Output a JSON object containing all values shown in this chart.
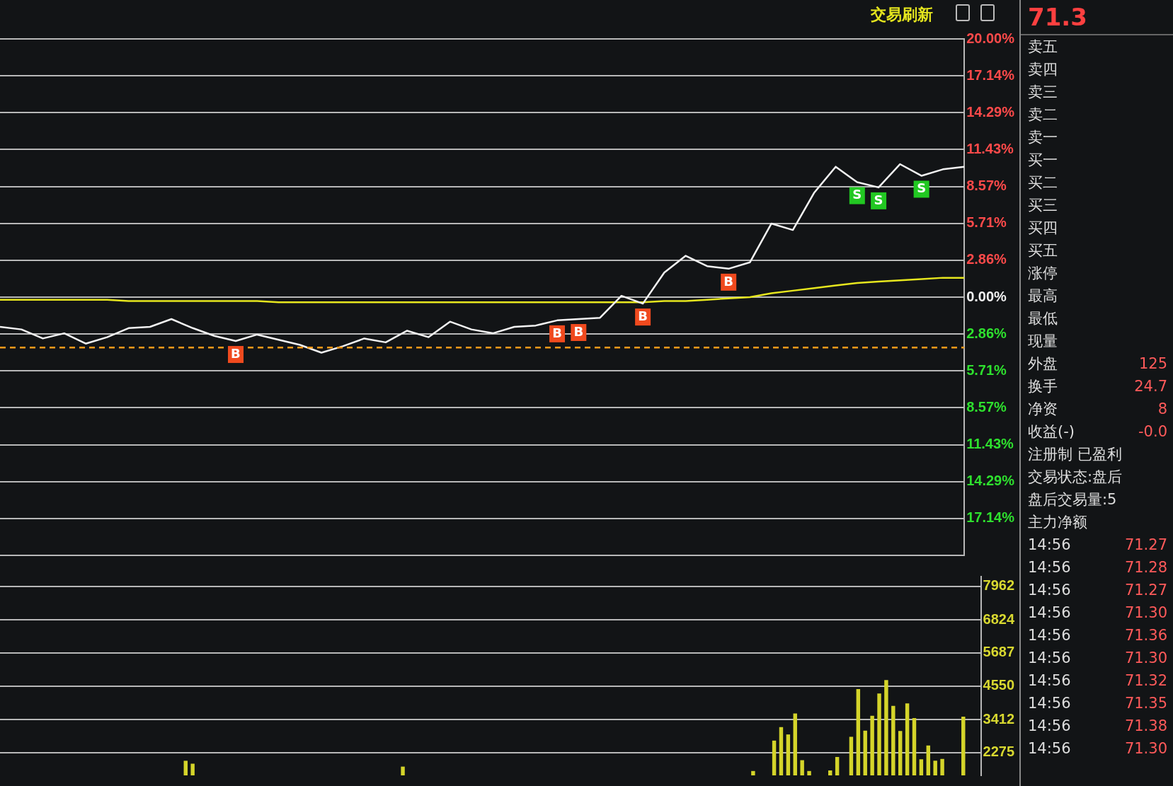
{
  "chart_data": [
    {
      "type": "line",
      "categories": [
        null,
        null,
        null,
        null,
        null,
        null,
        null,
        null,
        null,
        null,
        null,
        null,
        null,
        null,
        null,
        null,
        null,
        null,
        null,
        null,
        null,
        null,
        null,
        null,
        null,
        null,
        null,
        null,
        null,
        null,
        null,
        null,
        null,
        null,
        null,
        null,
        null,
        null,
        null,
        null,
        null,
        null,
        null,
        null,
        null,
        null
      ],
      "series": [
        {
          "color": "#f2f2f2",
          "values": [
            -2.3,
            -2.5,
            -3.2,
            -2.8,
            -3.6,
            -3.1,
            -2.4,
            -2.3,
            -1.7,
            -2.4,
            -3.0,
            -3.4,
            -2.9,
            -3.3,
            -3.7,
            -4.3,
            -3.8,
            -3.2,
            -3.5,
            -2.6,
            -3.1,
            -1.9,
            -2.5,
            -2.8,
            -2.3,
            -2.2,
            -1.8,
            -1.7,
            -1.6,
            0.1,
            -0.5,
            1.9,
            3.2,
            2.4,
            2.2,
            2.7,
            5.7,
            5.2,
            8.1,
            10.1,
            8.9,
            8.5,
            10.3,
            9.4,
            9.9,
            10.1
          ]
        },
        {
          "color": "#e6e61e",
          "values": [
            -0.2,
            -0.2,
            -0.2,
            -0.2,
            -0.2,
            -0.2,
            -0.3,
            -0.3,
            -0.3,
            -0.3,
            -0.3,
            -0.3,
            -0.3,
            -0.4,
            -0.4,
            -0.4,
            -0.4,
            -0.4,
            -0.4,
            -0.4,
            -0.4,
            -0.4,
            -0.4,
            -0.4,
            -0.4,
            -0.4,
            -0.4,
            -0.4,
            -0.4,
            -0.4,
            -0.4,
            -0.3,
            -0.3,
            -0.2,
            -0.1,
            0.0,
            0.3,
            0.5,
            0.7,
            0.9,
            1.1,
            1.2,
            1.3,
            1.4,
            1.5,
            1.5
          ]
        }
      ],
      "ylim": [
        -20,
        20
      ],
      "yticks": [
        {
          "value": 20,
          "label": "20.00%"
        },
        {
          "value": 17.14,
          "label": "17.14%"
        },
        {
          "value": 14.29,
          "label": "14.29%"
        },
        {
          "value": 11.43,
          "label": "11.43%"
        },
        {
          "value": 8.57,
          "label": "8.57%"
        },
        {
          "value": 5.71,
          "label": "5.71%"
        },
        {
          "value": 2.86,
          "label": "2.86%"
        },
        {
          "value": 0,
          "label": "0.00%"
        },
        {
          "value": -2.86,
          "label": "2.86%"
        },
        {
          "value": -5.71,
          "label": "5.71%"
        },
        {
          "value": -8.57,
          "label": "8.57%"
        },
        {
          "value": -11.43,
          "label": "11.43%"
        },
        {
          "value": -14.29,
          "label": "14.29%"
        },
        {
          "value": -17.14,
          "label": "17.14%"
        },
        {
          "value": -20,
          "label": null
        }
      ],
      "grid": "y",
      "tick_labels": "y",
      "marker": "none",
      "line_style": "solid",
      "ref_lines": [
        {
          "axis": "y",
          "value": -3.9,
          "color": "#ff9a1a",
          "line_style": "dashed"
        }
      ],
      "annotations": [
        "交易刷新",
        "71.3",
        {
          "text": "B",
          "y": -3.4
        },
        {
          "text": "B",
          "y": -1.8
        },
        {
          "text": "B",
          "y": -1.7
        },
        {
          "text": "B",
          "y": -0.5
        },
        {
          "text": "B",
          "y": 2.2
        },
        {
          "text": "S",
          "y": 8.9
        },
        {
          "text": "S",
          "y": 8.5
        },
        {
          "text": "S",
          "y": 9.4
        },
        "卖五",
        "卖四",
        "卖三",
        "卖二",
        "卖一",
        "买一",
        "买二",
        "买三",
        "买四",
        "买五",
        "涨停",
        "最高",
        "最低",
        "现量",
        "外盘\t125",
        "换手\t24.7",
        "净资\t8",
        "收益(-)\t-0.0",
        "注册制 已盈利",
        "交易状态:盘后",
        "盘后交易量:5",
        "主力净额",
        "14:56\t71.27",
        "14:56\t71.28",
        "14:56\t71.27",
        "14:56\t71.30",
        "14:56\t71.36",
        "14:56\t71.30",
        "14:56\t71.32",
        "14:56\t71.35",
        "14:56\t71.38",
        "14:56\t71.30"
      ]
    },
    {
      "type": "bar",
      "color": "#d4d42a",
      "ylim": [
        1500,
        8300
      ],
      "yticks": [
        2275,
        3412,
        4550,
        5687,
        6824,
        7962
      ],
      "grid": "y",
      "tick_labels": "y",
      "categories": [
        null,
        null,
        null,
        null,
        null,
        null,
        null,
        null,
        null,
        null,
        null,
        null,
        null,
        null,
        null,
        null,
        null,
        null,
        null,
        null,
        null,
        null,
        null,
        null,
        null,
        null,
        null,
        null,
        null,
        null,
        null,
        null,
        null,
        null,
        null,
        null,
        null,
        null,
        null,
        null,
        null,
        null,
        null,
        null,
        null,
        null,
        null,
        null,
        null,
        null,
        null,
        null,
        null,
        null,
        null,
        null,
        null,
        null,
        null,
        null,
        null,
        null,
        null,
        null,
        null,
        null,
        null,
        null,
        null,
        null,
        null,
        null,
        null,
        null,
        null,
        null,
        null,
        null,
        null,
        null,
        null,
        null,
        null,
        null,
        null,
        null,
        null,
        null,
        null,
        null,
        null,
        null,
        null,
        null,
        null,
        null,
        null,
        null,
        null,
        null,
        null,
        null,
        null,
        null,
        null,
        null,
        null,
        null,
        null,
        null,
        null,
        null,
        null,
        null,
        null,
        null,
        null,
        null,
        null,
        null,
        null,
        null,
        null,
        null,
        null,
        null,
        null,
        null,
        null,
        null,
        null,
        null,
        null,
        null,
        null,
        null,
        null,
        null,
        null,
        null
      ],
      "values": [
        null,
        null,
        null,
        null,
        null,
        null,
        null,
        null,
        null,
        null,
        null,
        null,
        null,
        null,
        null,
        null,
        null,
        null,
        null,
        null,
        null,
        null,
        null,
        null,
        null,
        null,
        2000,
        1900,
        null,
        null,
        null,
        null,
        null,
        null,
        null,
        null,
        null,
        null,
        null,
        null,
        null,
        null,
        null,
        null,
        null,
        null,
        null,
        null,
        null,
        null,
        null,
        null,
        null,
        null,
        null,
        null,
        null,
        1800,
        null,
        null,
        null,
        null,
        null,
        null,
        null,
        null,
        null,
        null,
        null,
        null,
        null,
        null,
        null,
        null,
        null,
        null,
        null,
        null,
        null,
        null,
        null,
        null,
        null,
        null,
        null,
        null,
        null,
        null,
        null,
        null,
        null,
        null,
        null,
        null,
        null,
        null,
        null,
        null,
        null,
        null,
        null,
        null,
        null,
        null,
        null,
        null,
        null,
        1650,
        null,
        null,
        2690,
        3150,
        2900,
        3620,
        2020,
        1650,
        null,
        null,
        1670,
        2130,
        null,
        2820,
        4450,
        3030,
        3540,
        4300,
        4760,
        3880,
        3020,
        3960,
        3460,
        2050,
        2520,
        2000,
        2060,
        null,
        null,
        3510,
        null,
        null
      ]
    }
  ]
}
